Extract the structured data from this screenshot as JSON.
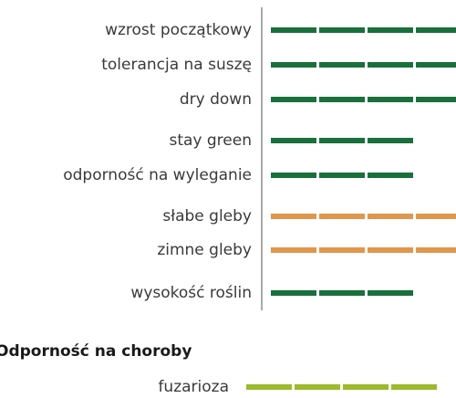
{
  "traits": [
    {
      "label": "wzrost początkowy",
      "rating": 4,
      "color": "#19703c"
    },
    {
      "label": "tolerancja na suszę",
      "rating": 4,
      "color": "#19703c"
    },
    {
      "label": "dry down",
      "rating": 4,
      "color": "#19703c"
    },
    {
      "label": "stay green",
      "rating": 3,
      "color": "#19703c"
    },
    {
      "label": "odporność na wyleganie",
      "rating": 3,
      "color": "#19703c"
    },
    {
      "label": "słabe gleby",
      "rating": 4,
      "color": "#e0974c"
    },
    {
      "label": "zimne gleby",
      "rating": 4,
      "color": "#e0974c"
    },
    {
      "label": "wysokość roślin",
      "rating": 3,
      "color": "#19703c"
    }
  ],
  "disease": {
    "title": "Odporność na choroby",
    "traits": [
      {
        "label": "fuzarioza",
        "rating": 4,
        "color": "#9cba2a"
      }
    ]
  }
}
